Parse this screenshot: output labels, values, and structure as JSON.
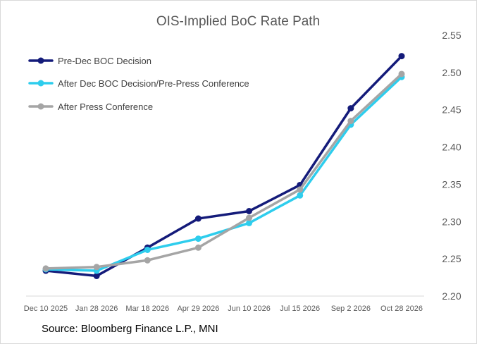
{
  "chart_data": {
    "type": "line",
    "title": "OIS-Implied BoC Rate Path",
    "xlabel": "",
    "ylabel": "",
    "categories": [
      "Dec 10 2025",
      "Jan 28 2026",
      "Mar 18 2026",
      "Apr 29 2026",
      "Jun 10 2026",
      "Jul 15 2026",
      "Sep 2 2026",
      "Oct 28 2026"
    ],
    "ylim": [
      2.2,
      2.55
    ],
    "yticks": [
      "2.55",
      "2.50",
      "2.45",
      "2.40",
      "2.35",
      "2.30",
      "2.25",
      "2.20"
    ],
    "y_axis_side": "right",
    "legend_position": "top-left",
    "series": [
      {
        "name": "Pre-Dec BOC Decision",
        "color": "#141B7A",
        "values": [
          2.234,
          2.227,
          2.265,
          2.304,
          2.314,
          2.349,
          2.452,
          2.522
        ]
      },
      {
        "name": "After Dec BOC Decision/Pre-Press Conference",
        "color": "#2ECDED",
        "values": [
          2.236,
          2.234,
          2.262,
          2.277,
          2.298,
          2.335,
          2.43,
          2.494
        ]
      },
      {
        "name": "After Press Conference",
        "color": "#A5A5A5",
        "values": [
          2.237,
          2.239,
          2.248,
          2.265,
          2.305,
          2.343,
          2.435,
          2.498
        ]
      }
    ],
    "source": "Source: Bloomberg Finance L.P., MNI"
  }
}
